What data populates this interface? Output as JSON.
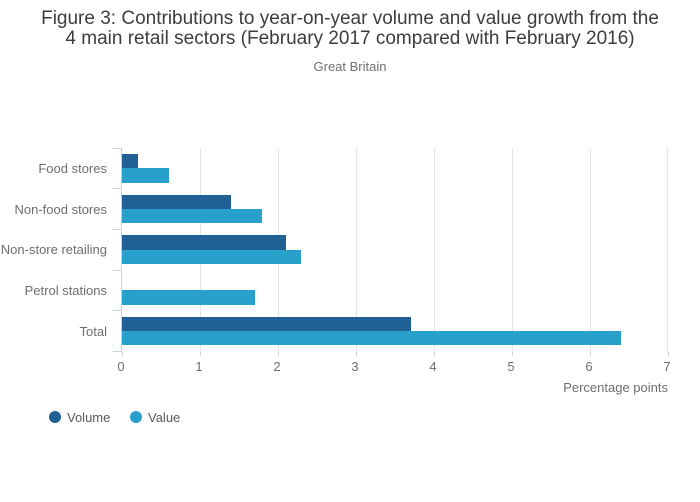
{
  "header": {
    "title_lines": [
      "Figure 3: Contributions to year-on-year volume and value growth from the",
      "4 main retail sectors (February 2017 compared with February 2016)"
    ],
    "subtitle": "Great Britain"
  },
  "chart_data": {
    "type": "bar",
    "orientation": "horizontal",
    "title": "Figure 3: Contributions to year-on-year volume and value growth from the 4 main retail sectors (February 2017 compared with February 2016)",
    "subtitle": "Great Britain",
    "categories": [
      "Food stores",
      "Non-food stores",
      "Non-store retailing",
      "Petrol stations",
      "Total"
    ],
    "series": [
      {
        "name": "Volume",
        "color": "#206095",
        "values": [
          0.2,
          1.4,
          2.1,
          0,
          3.7
        ]
      },
      {
        "name": "Value",
        "color": "#27A0CC",
        "values": [
          0.6,
          1.8,
          2.3,
          1.7,
          6.4
        ]
      }
    ],
    "xlabel": "Percentage points",
    "xlim": [
      0,
      7
    ],
    "xticks": [
      0,
      1,
      2,
      3,
      4,
      5,
      6,
      7
    ],
    "grid": true,
    "legend_position": "bottom-left"
  },
  "colors": {
    "bar_volume": "#206095",
    "bar_value": "#27A0CC",
    "axis_line": "#c9d3dc",
    "gridline": "#e1e5ea",
    "title_text": "#3d3d3d",
    "label_text": "#6e6e6e",
    "legend_text": "#595959",
    "background": "#ffffff"
  }
}
